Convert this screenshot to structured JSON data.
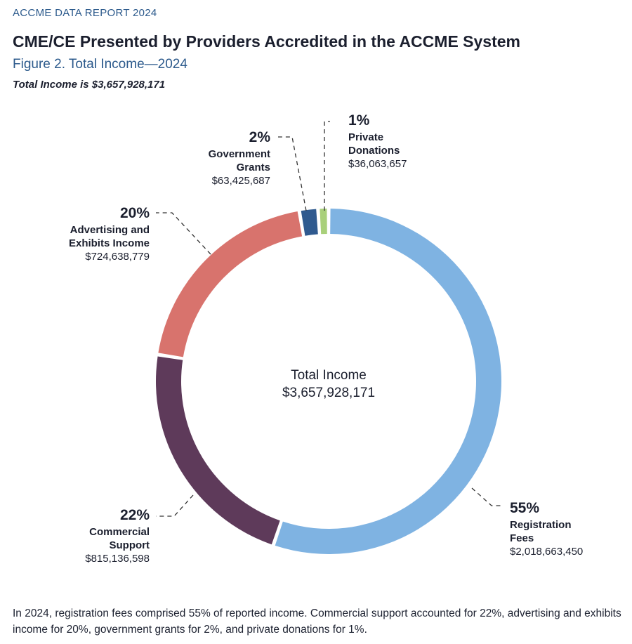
{
  "header": {
    "report_label": "ACCME DATA REPORT 2024",
    "title": "CME/CE Presented by Providers Accredited in the ACCME System",
    "subtitle": "Figure 2. Total Income—2024",
    "total_note": "Total Income is $3,657,928,171"
  },
  "chart_data": {
    "type": "pie",
    "donut": true,
    "center_label": "Total Income",
    "center_value": "$3,657,928,171",
    "slices": [
      {
        "name": "Registration Fees",
        "label_lines": [
          "Registration",
          "Fees"
        ],
        "percent_label": "55%",
        "amount": "$2,018,663,450",
        "value": 2018663450,
        "color": "#7fb3e2"
      },
      {
        "name": "Commercial Support",
        "label_lines": [
          "Commercial",
          "Support"
        ],
        "percent_label": "22%",
        "amount": "$815,136,598",
        "value": 815136598,
        "color": "#5e3a5a"
      },
      {
        "name": "Advertising and Exhibits Income",
        "label_lines": [
          "Advertising and",
          "Exhibits Income"
        ],
        "percent_label": "20%",
        "amount": "$724,638,779",
        "value": 724638779,
        "color": "#d8736d"
      },
      {
        "name": "Government Grants",
        "label_lines": [
          "Government",
          "Grants"
        ],
        "percent_label": "2%",
        "amount": "$63,425,687",
        "value": 63425687,
        "color": "#2f5a8f"
      },
      {
        "name": "Private Donations",
        "label_lines": [
          "Private",
          "Donations"
        ],
        "percent_label": "1%",
        "amount": "$36,063,657",
        "value": 36063657,
        "color": "#a9d07a"
      }
    ]
  },
  "caption": "In 2024, registration fees comprised 55% of reported income. Commercial support accounted for 22%, advertising and exhibits income for 20%, government grants for 2%, and private donations for 1%."
}
